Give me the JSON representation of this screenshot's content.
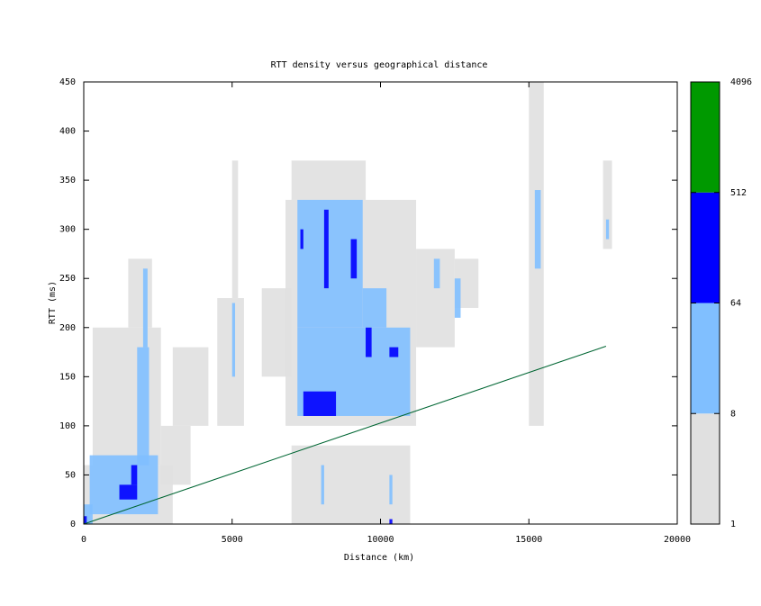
{
  "chart_data": {
    "type": "heatmap",
    "title": "RTT density versus geographical distance",
    "x_label": "Distance (km)",
    "y_label": "RTT (ms)",
    "xlim": [
      0,
      20000
    ],
    "xticks": [
      0,
      5000,
      10000,
      15000,
      20000
    ],
    "ylim": [
      0,
      450
    ],
    "yticks": [
      0,
      50,
      100,
      150,
      200,
      250,
      300,
      350,
      400,
      450
    ],
    "colorbar": {
      "lim": [
        1,
        4096
      ],
      "ticks": [
        1,
        8,
        64,
        512,
        4096
      ],
      "log_scale": true,
      "colors": [
        "#e0e0e0",
        "#80bfff",
        "#0000ff",
        "#009900"
      ]
    },
    "cells": [
      {
        "x": [
          0,
          3000
        ],
        "y": [
          0,
          60
        ],
        "count": 3
      },
      {
        "x": [
          300,
          2600
        ],
        "y": [
          60,
          200
        ],
        "count": 2
      },
      {
        "x": [
          1500,
          2300
        ],
        "y": [
          200,
          270
        ],
        "count": 2
      },
      {
        "x": [
          2600,
          3600
        ],
        "y": [
          40,
          100
        ],
        "count": 2
      },
      {
        "x": [
          3000,
          4200
        ],
        "y": [
          100,
          180
        ],
        "count": 1
      },
      {
        "x": [
          4500,
          5400
        ],
        "y": [
          100,
          230
        ],
        "count": 1
      },
      {
        "x": [
          5000,
          5200
        ],
        "y": [
          230,
          370
        ],
        "count": 1
      },
      {
        "x": [
          6000,
          7000
        ],
        "y": [
          150,
          240
        ],
        "count": 1
      },
      {
        "x": [
          6800,
          11200
        ],
        "y": [
          100,
          330
        ],
        "count": 3
      },
      {
        "x": [
          7000,
          9500
        ],
        "y": [
          330,
          370
        ],
        "count": 1
      },
      {
        "x": [
          11200,
          12500
        ],
        "y": [
          180,
          280
        ],
        "count": 2
      },
      {
        "x": [
          12500,
          13300
        ],
        "y": [
          220,
          270
        ],
        "count": 1
      },
      {
        "x": [
          7000,
          11000
        ],
        "y": [
          0,
          80
        ],
        "count": 2
      },
      {
        "x": [
          15000,
          15500
        ],
        "y": [
          100,
          450
        ],
        "count": 2
      },
      {
        "x": [
          17500,
          17800
        ],
        "y": [
          280,
          370
        ],
        "count": 1
      },
      {
        "x": [
          200,
          2500
        ],
        "y": [
          10,
          70
        ],
        "count": 20
      },
      {
        "x": [
          0,
          300
        ],
        "y": [
          0,
          20
        ],
        "count": 20
      },
      {
        "x": [
          1800,
          2200
        ],
        "y": [
          60,
          180
        ],
        "count": 15
      },
      {
        "x": [
          2000,
          2150
        ],
        "y": [
          180,
          260
        ],
        "count": 12
      },
      {
        "x": [
          7200,
          11000
        ],
        "y": [
          110,
          200
        ],
        "count": 25
      },
      {
        "x": [
          7200,
          9400
        ],
        "y": [
          200,
          330
        ],
        "count": 25
      },
      {
        "x": [
          9400,
          10200
        ],
        "y": [
          200,
          240
        ],
        "count": 12
      },
      {
        "x": [
          5000,
          5100
        ],
        "y": [
          150,
          225
        ],
        "count": 10
      },
      {
        "x": [
          11800,
          12000
        ],
        "y": [
          240,
          270
        ],
        "count": 10
      },
      {
        "x": [
          12500,
          12700
        ],
        "y": [
          210,
          250
        ],
        "count": 10
      },
      {
        "x": [
          15200,
          15400
        ],
        "y": [
          260,
          340
        ],
        "count": 10
      },
      {
        "x": [
          17600,
          17700
        ],
        "y": [
          290,
          310
        ],
        "count": 10
      },
      {
        "x": [
          8000,
          8100
        ],
        "y": [
          20,
          60
        ],
        "count": 10
      },
      {
        "x": [
          10300,
          10400
        ],
        "y": [
          20,
          50
        ],
        "count": 10
      },
      {
        "x": [
          1200,
          1800
        ],
        "y": [
          25,
          40
        ],
        "count": 100
      },
      {
        "x": [
          1600,
          1800
        ],
        "y": [
          40,
          60
        ],
        "count": 100
      },
      {
        "x": [
          7400,
          8500
        ],
        "y": [
          110,
          135
        ],
        "count": 150
      },
      {
        "x": [
          8100,
          8250
        ],
        "y": [
          240,
          320
        ],
        "count": 100
      },
      {
        "x": [
          7300,
          7400
        ],
        "y": [
          280,
          300
        ],
        "count": 80
      },
      {
        "x": [
          9000,
          9200
        ],
        "y": [
          250,
          290
        ],
        "count": 100
      },
      {
        "x": [
          10300,
          10600
        ],
        "y": [
          170,
          180
        ],
        "count": 100
      },
      {
        "x": [
          9500,
          9700
        ],
        "y": [
          170,
          200
        ],
        "count": 80
      },
      {
        "x": [
          0,
          100
        ],
        "y": [
          0,
          8
        ],
        "count": 100
      },
      {
        "x": [
          10300,
          10400
        ],
        "y": [
          0,
          5
        ],
        "count": 80
      }
    ],
    "line": {
      "x": [
        0,
        17600
      ],
      "y": [
        0,
        181
      ],
      "color": "#006633"
    }
  }
}
